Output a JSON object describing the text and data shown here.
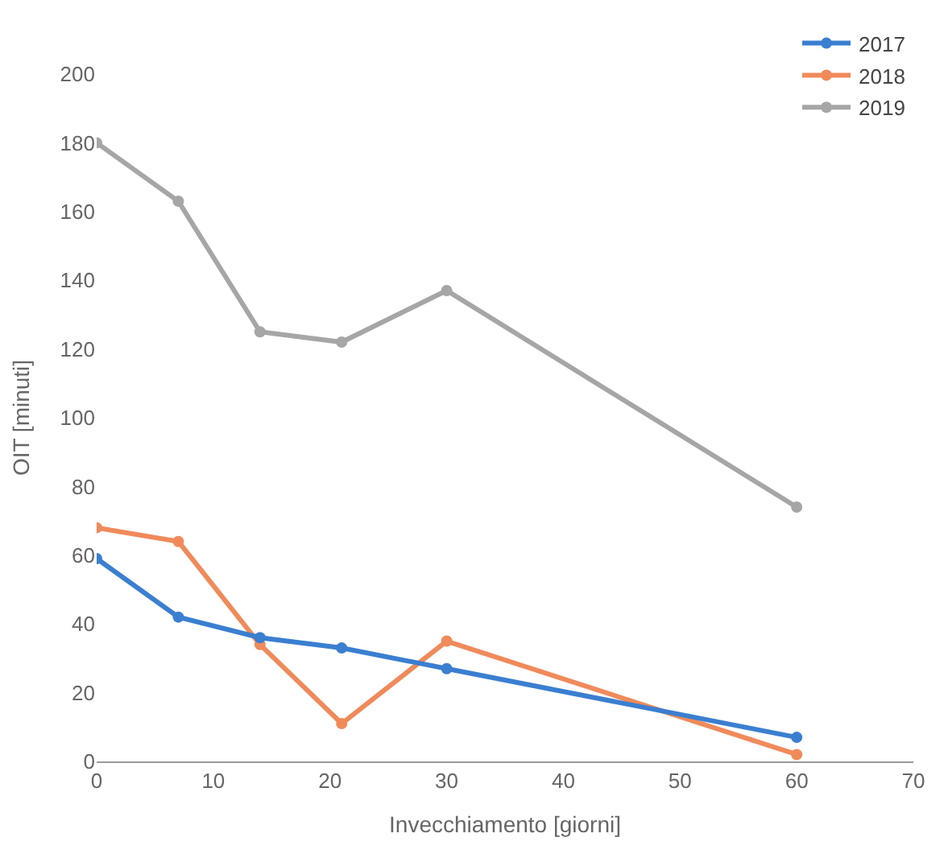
{
  "chart_data": {
    "type": "line",
    "xlabel": "Invecchiamento [giorni]",
    "ylabel": "OIT [minuti]",
    "x": [
      0,
      7,
      14,
      21,
      30,
      60
    ],
    "series": [
      {
        "name": "2017",
        "color": "#3a7fd0",
        "values": [
          59,
          42,
          36,
          33,
          27,
          7
        ]
      },
      {
        "name": "2018",
        "color": "#f08a5a",
        "values": [
          68,
          64,
          34,
          11,
          35,
          2
        ]
      },
      {
        "name": "2019",
        "color": "#a6a6a6",
        "values": [
          180,
          163,
          125,
          122,
          137,
          74
        ]
      }
    ],
    "xlim": [
      0,
      70
    ],
    "xticks": [
      0,
      10,
      20,
      30,
      40,
      50,
      60,
      70
    ],
    "ylim": [
      0,
      200
    ],
    "yticks": [
      0,
      20,
      40,
      60,
      80,
      100,
      120,
      140,
      160,
      180,
      200
    ],
    "legend": "top right",
    "marker": "circle",
    "line_style": "solid"
  }
}
